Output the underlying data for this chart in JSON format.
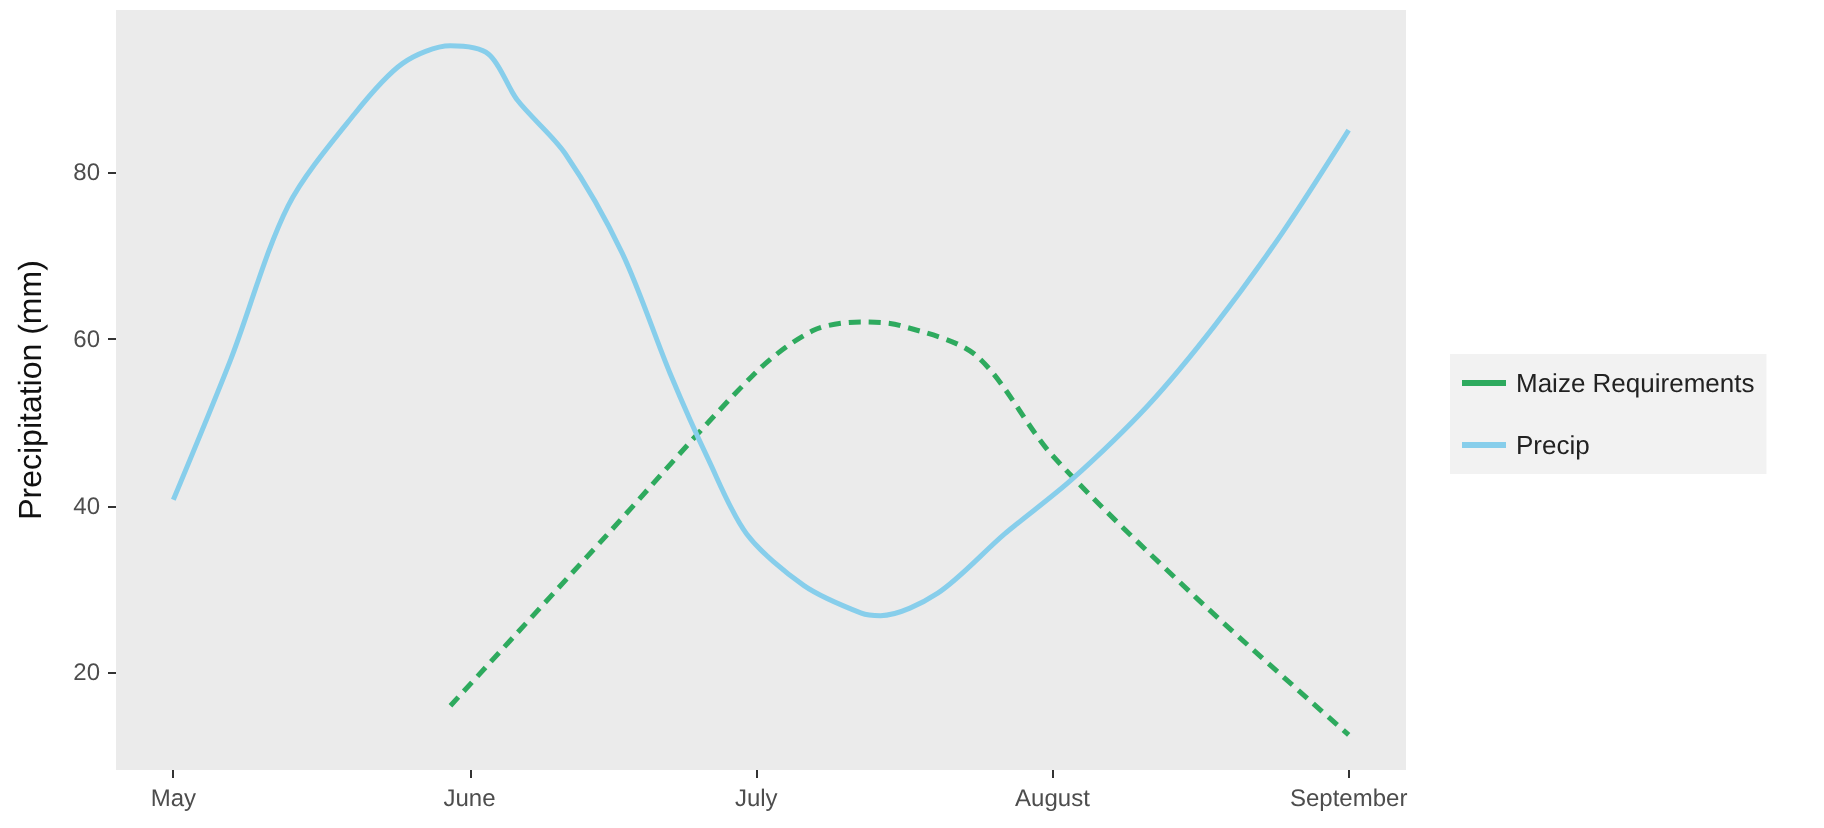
{
  "chart_data": {
    "type": "line",
    "ylabel": "Precipitation (mm)",
    "xlim": [
      "--04-25",
      "--09-07"
    ],
    "xticks": [
      {
        "value": "--05-01",
        "label": "May"
      },
      {
        "value": "--06-01",
        "label": "June"
      },
      {
        "value": "--07-01",
        "label": "July"
      },
      {
        "value": "--08-01",
        "label": "August"
      },
      {
        "value": "--09-01",
        "label": "September"
      }
    ],
    "ylim": [
      8.3,
      99.4
    ],
    "yticks": [
      20,
      40,
      60,
      80
    ],
    "grid": false,
    "legend": "right",
    "marker": "none",
    "series": [
      {
        "name": "Maize Requirements",
        "color": "#2eaa5e",
        "line_style": "dashed",
        "x": [
          "--05-30",
          "--06-15",
          "--07-01",
          "--07-07",
          "--07-12",
          "--07-16",
          "--07-24",
          "--08-01",
          "--08-16",
          "--09-01"
        ],
        "values": [
          16,
          36,
          56,
          61,
          62,
          61.6,
          58,
          46,
          29,
          12.5
        ]
      },
      {
        "name": "Precip",
        "color": "#87ceeb",
        "line_style": "solid",
        "x": [
          "--05-01",
          "--05-07",
          "--05-13",
          "--05-20",
          "--05-25",
          "--05-30",
          "--06-03",
          "--06-06",
          "--06-11",
          "--06-17",
          "--06-22",
          "--06-26",
          "--06-30",
          "--07-06",
          "--07-12",
          "--07-14",
          "--07-20",
          "--07-27",
          "--08-03",
          "--08-11",
          "--08-18",
          "--08-25",
          "--09-01"
        ],
        "values": [
          40.7,
          57.5,
          75.9,
          87,
          93,
          95.1,
          94.1,
          88.6,
          82.2,
          70.2,
          55.8,
          45.5,
          36.6,
          30.4,
          27.1,
          26.8,
          29.5,
          36.6,
          43.1,
          52,
          61.6,
          72.6,
          85
        ]
      }
    ]
  }
}
